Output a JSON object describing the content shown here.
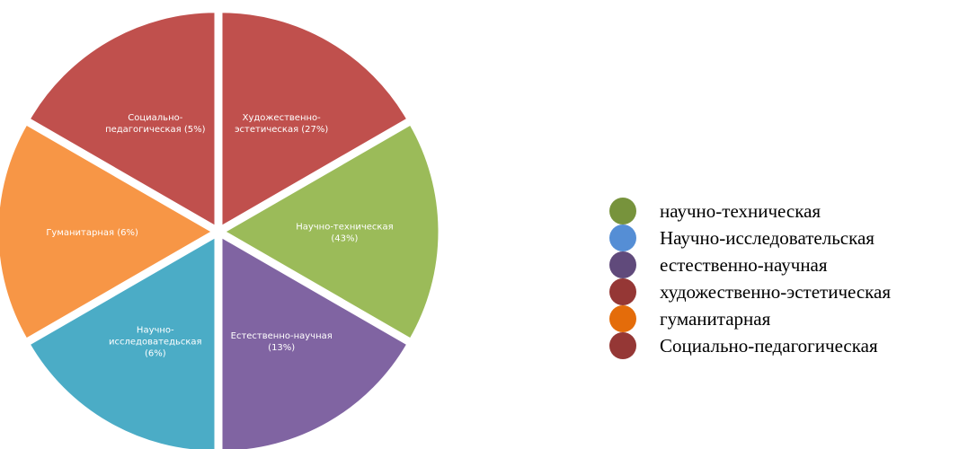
{
  "chart_data": {
    "type": "pie",
    "title": "",
    "slices": [
      {
        "label_lines": [
          "Художественно-",
          "эстетическая  (27%)"
        ],
        "value": 27,
        "color": "#C0504D"
      },
      {
        "label_lines": [
          "Научно-техническая",
          "(43%)"
        ],
        "value": 43,
        "color": "#9BBB59"
      },
      {
        "label_lines": [
          "Естественно-научная",
          "(13%)"
        ],
        "value": 13,
        "color": "#8064A2"
      },
      {
        "label_lines": [
          "Научно-",
          "исследоватедьская",
          "(6%)"
        ],
        "value": 6,
        "color": "#4BACC6"
      },
      {
        "label_lines": [
          "Гуманитарная  (6%)"
        ],
        "value": 6,
        "color": "#F79646"
      },
      {
        "label_lines": [
          "Социально-",
          "педагогическая  (5%)"
        ],
        "value": 5,
        "color": "#C0504D"
      }
    ],
    "legend": {
      "position": "right",
      "items": [
        {
          "label": "научно-техническая",
          "color": "#77933C"
        },
        {
          "label": "Научно-исследовательская",
          "color": "#558ED5"
        },
        {
          "label": "естественно-научная",
          "color": "#604A7B"
        },
        {
          "label": "художественно-эстетическая",
          "color": "#953735"
        },
        {
          "label": "гуманитарная",
          "color": "#E46C0A"
        },
        {
          "label": "Социально-педагогическая",
          "color": "#953735"
        }
      ]
    }
  }
}
